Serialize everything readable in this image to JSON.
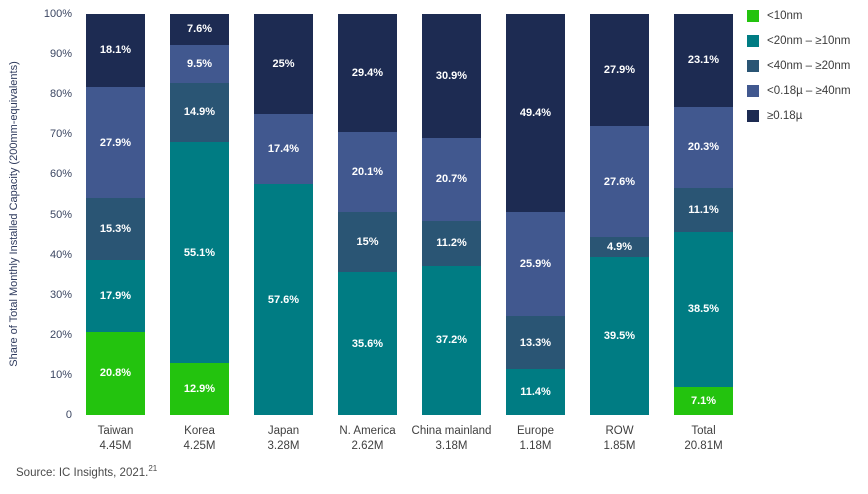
{
  "chart_data": {
    "type": "bar",
    "stacked": true,
    "orientation": "vertical",
    "ylabel": "Share of Total Monthly Installed Capacity (200mm-equivalents)",
    "ylim": [
      0,
      100
    ],
    "yticks": [
      "100%",
      "90%",
      "80%",
      "70%",
      "60%",
      "50%",
      "40%",
      "30%",
      "20%",
      "10%",
      "0"
    ],
    "grid": false,
    "legend_position": "top-right",
    "categories": [
      "Taiwan",
      "Korea",
      "Japan",
      "N. America",
      "China mainland",
      "Europe",
      "ROW",
      "Total"
    ],
    "category_totals": [
      "4.45M",
      "4.25M",
      "3.28M",
      "2.62M",
      "3.18M",
      "1.18M",
      "1.85M",
      "20.81M"
    ],
    "series": [
      {
        "name": "<10nm",
        "color": "#23c30e",
        "values": [
          20.8,
          12.9,
          0,
          0,
          0,
          0,
          0,
          7.1
        ]
      },
      {
        "name": "<20nm – ≥10nm",
        "color": "#007c83",
        "values": [
          17.9,
          55.1,
          57.6,
          35.6,
          37.2,
          11.4,
          39.5,
          38.5
        ]
      },
      {
        "name": "<40nm – ≥20nm",
        "color": "#2a5574",
        "values": [
          15.3,
          14.9,
          0,
          15,
          11.2,
          13.3,
          4.9,
          11.1
        ]
      },
      {
        "name": "<0.18µ – ≥40nm",
        "color": "#41588f",
        "values": [
          27.9,
          9.5,
          17.4,
          20.1,
          20.7,
          25.9,
          27.6,
          20.3
        ]
      },
      {
        "name": "≥0.18µ",
        "color": "#1d2b52",
        "values": [
          18.1,
          7.6,
          25,
          29.4,
          30.9,
          49.4,
          27.9,
          23.1
        ]
      }
    ]
  },
  "source": {
    "text": "Source: IC Insights, 2021.",
    "superscript": "21"
  }
}
